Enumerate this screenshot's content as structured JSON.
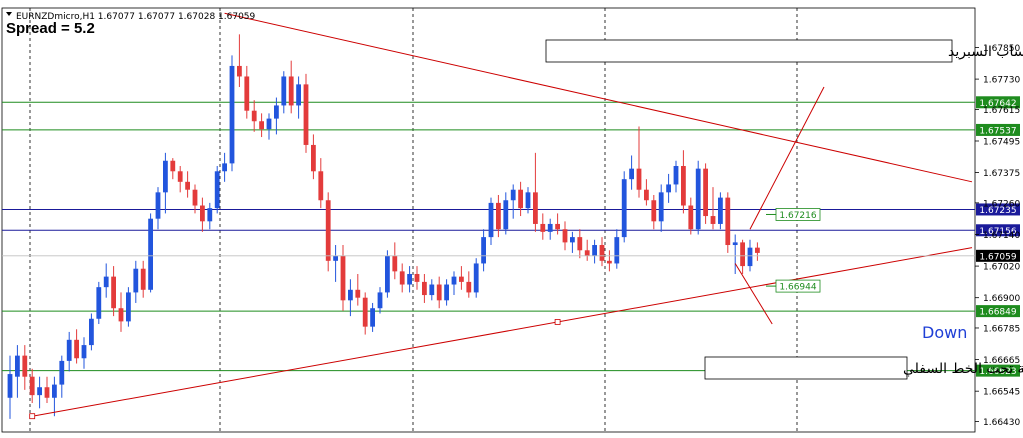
{
  "window": {
    "symbol_info": "EURNZDmicro,H1  1.67077 1.67077 1.67028 1.67059",
    "spread_text": "Spread = 5.2"
  },
  "annotations": {
    "top_note": "ادخل بيع لما يرجع السعر لخط السفلي مع عمل حساب السبريد",
    "bottom_note": "اغلقت شمعة تحت الخط السفلي",
    "direction": "Down"
  },
  "colors": {
    "bull": "#2255dd",
    "bear": "#e33b3b",
    "trendline": "#cc0000",
    "support_resistance": "#1e8c1e",
    "blue_level": "#1a1a9a",
    "background": "#ffffff"
  },
  "chart_data": {
    "type": "candlestick",
    "symbol": "EURNZDmicro",
    "timeframe": "H1",
    "ylim": [
      1.6639,
      1.68
    ],
    "y_ticks": [
      1.6785,
      1.6773,
      1.67615,
      1.67495,
      1.67375,
      1.6726,
      1.6714,
      1.6702,
      1.669,
      1.66785,
      1.66665,
      1.66545,
      1.6643
    ],
    "candles": [
      {
        "o": 1.6652,
        "h": 1.6668,
        "l": 1.6644,
        "c": 1.6661
      },
      {
        "o": 1.666,
        "h": 1.6672,
        "l": 1.6652,
        "c": 1.6668
      },
      {
        "o": 1.6668,
        "h": 1.6672,
        "l": 1.6655,
        "c": 1.666
      },
      {
        "o": 1.666,
        "h": 1.6663,
        "l": 1.665,
        "c": 1.6653
      },
      {
        "o": 1.6653,
        "h": 1.666,
        "l": 1.6648,
        "c": 1.6656
      },
      {
        "o": 1.6656,
        "h": 1.666,
        "l": 1.665,
        "c": 1.6652
      },
      {
        "o": 1.6652,
        "h": 1.666,
        "l": 1.6645,
        "c": 1.6657
      },
      {
        "o": 1.6657,
        "h": 1.6668,
        "l": 1.6652,
        "c": 1.6666
      },
      {
        "o": 1.6666,
        "h": 1.6677,
        "l": 1.6662,
        "c": 1.6674
      },
      {
        "o": 1.6674,
        "h": 1.6678,
        "l": 1.6665,
        "c": 1.6667
      },
      {
        "o": 1.6667,
        "h": 1.6675,
        "l": 1.6663,
        "c": 1.6672
      },
      {
        "o": 1.6672,
        "h": 1.6684,
        "l": 1.667,
        "c": 1.6682
      },
      {
        "o": 1.6682,
        "h": 1.6696,
        "l": 1.668,
        "c": 1.6694
      },
      {
        "o": 1.6694,
        "h": 1.6703,
        "l": 1.669,
        "c": 1.6698
      },
      {
        "o": 1.6698,
        "h": 1.6702,
        "l": 1.6683,
        "c": 1.6686
      },
      {
        "o": 1.6686,
        "h": 1.6692,
        "l": 1.6677,
        "c": 1.6681
      },
      {
        "o": 1.6681,
        "h": 1.6694,
        "l": 1.6679,
        "c": 1.6692
      },
      {
        "o": 1.6692,
        "h": 1.6704,
        "l": 1.6688,
        "c": 1.6701
      },
      {
        "o": 1.6701,
        "h": 1.6704,
        "l": 1.669,
        "c": 1.6693
      },
      {
        "o": 1.6693,
        "h": 1.6722,
        "l": 1.6692,
        "c": 1.672
      },
      {
        "o": 1.672,
        "h": 1.6732,
        "l": 1.6716,
        "c": 1.673
      },
      {
        "o": 1.673,
        "h": 1.6745,
        "l": 1.6722,
        "c": 1.6742
      },
      {
        "o": 1.6742,
        "h": 1.6743,
        "l": 1.6735,
        "c": 1.6738
      },
      {
        "o": 1.6738,
        "h": 1.674,
        "l": 1.673,
        "c": 1.6734
      },
      {
        "o": 1.6734,
        "h": 1.6738,
        "l": 1.6728,
        "c": 1.6731
      },
      {
        "o": 1.6731,
        "h": 1.6733,
        "l": 1.6722,
        "c": 1.6725
      },
      {
        "o": 1.6725,
        "h": 1.6728,
        "l": 1.6715,
        "c": 1.6719
      },
      {
        "o": 1.6719,
        "h": 1.6726,
        "l": 1.6716,
        "c": 1.6724
      },
      {
        "o": 1.6724,
        "h": 1.674,
        "l": 1.6722,
        "c": 1.6738
      },
      {
        "o": 1.6738,
        "h": 1.6745,
        "l": 1.6734,
        "c": 1.6741
      },
      {
        "o": 1.6741,
        "h": 1.6782,
        "l": 1.6738,
        "c": 1.6778
      },
      {
        "o": 1.6778,
        "h": 1.679,
        "l": 1.677,
        "c": 1.6774
      },
      {
        "o": 1.6774,
        "h": 1.6778,
        "l": 1.6758,
        "c": 1.6761
      },
      {
        "o": 1.6761,
        "h": 1.6765,
        "l": 1.6753,
        "c": 1.6757
      },
      {
        "o": 1.6757,
        "h": 1.676,
        "l": 1.6751,
        "c": 1.6754
      },
      {
        "o": 1.6754,
        "h": 1.676,
        "l": 1.675,
        "c": 1.6758
      },
      {
        "o": 1.6758,
        "h": 1.6766,
        "l": 1.6752,
        "c": 1.6763
      },
      {
        "o": 1.6763,
        "h": 1.6776,
        "l": 1.676,
        "c": 1.6774
      },
      {
        "o": 1.6774,
        "h": 1.678,
        "l": 1.676,
        "c": 1.6763
      },
      {
        "o": 1.6763,
        "h": 1.6774,
        "l": 1.6758,
        "c": 1.6771
      },
      {
        "o": 1.6771,
        "h": 1.6775,
        "l": 1.6745,
        "c": 1.6748
      },
      {
        "o": 1.6748,
        "h": 1.6752,
        "l": 1.6735,
        "c": 1.6738
      },
      {
        "o": 1.6738,
        "h": 1.6743,
        "l": 1.6724,
        "c": 1.6727
      },
      {
        "o": 1.6727,
        "h": 1.673,
        "l": 1.67,
        "c": 1.6704
      },
      {
        "o": 1.6704,
        "h": 1.671,
        "l": 1.6696,
        "c": 1.6706
      },
      {
        "o": 1.6706,
        "h": 1.671,
        "l": 1.6685,
        "c": 1.6689
      },
      {
        "o": 1.6689,
        "h": 1.6697,
        "l": 1.6683,
        "c": 1.6693
      },
      {
        "o": 1.6693,
        "h": 1.6699,
        "l": 1.6687,
        "c": 1.669
      },
      {
        "o": 1.669,
        "h": 1.6692,
        "l": 1.6676,
        "c": 1.6679
      },
      {
        "o": 1.6679,
        "h": 1.6688,
        "l": 1.6677,
        "c": 1.6686
      },
      {
        "o": 1.6686,
        "h": 1.6694,
        "l": 1.6684,
        "c": 1.6692
      },
      {
        "o": 1.6692,
        "h": 1.6708,
        "l": 1.669,
        "c": 1.6706
      },
      {
        "o": 1.6706,
        "h": 1.6711,
        "l": 1.6697,
        "c": 1.67
      },
      {
        "o": 1.67,
        "h": 1.6703,
        "l": 1.6692,
        "c": 1.6695
      },
      {
        "o": 1.6695,
        "h": 1.6702,
        "l": 1.6692,
        "c": 1.6699
      },
      {
        "o": 1.6699,
        "h": 1.6702,
        "l": 1.6693,
        "c": 1.6696
      },
      {
        "o": 1.6696,
        "h": 1.6699,
        "l": 1.6688,
        "c": 1.6691
      },
      {
        "o": 1.6691,
        "h": 1.6697,
        "l": 1.6689,
        "c": 1.6695
      },
      {
        "o": 1.6695,
        "h": 1.6698,
        "l": 1.6686,
        "c": 1.6689
      },
      {
        "o": 1.6689,
        "h": 1.6697,
        "l": 1.6687,
        "c": 1.6695
      },
      {
        "o": 1.6695,
        "h": 1.67,
        "l": 1.6691,
        "c": 1.6698
      },
      {
        "o": 1.6698,
        "h": 1.6702,
        "l": 1.6693,
        "c": 1.6696
      },
      {
        "o": 1.6696,
        "h": 1.67,
        "l": 1.669,
        "c": 1.6692
      },
      {
        "o": 1.6692,
        "h": 1.6705,
        "l": 1.669,
        "c": 1.6703
      },
      {
        "o": 1.6703,
        "h": 1.6716,
        "l": 1.67,
        "c": 1.6713
      },
      {
        "o": 1.6713,
        "h": 1.6728,
        "l": 1.671,
        "c": 1.6726
      },
      {
        "o": 1.6726,
        "h": 1.6729,
        "l": 1.6713,
        "c": 1.6716
      },
      {
        "o": 1.6716,
        "h": 1.673,
        "l": 1.6714,
        "c": 1.6727
      },
      {
        "o": 1.6727,
        "h": 1.6733,
        "l": 1.672,
        "c": 1.6731
      },
      {
        "o": 1.6731,
        "h": 1.6734,
        "l": 1.6721,
        "c": 1.6724
      },
      {
        "o": 1.6724,
        "h": 1.6732,
        "l": 1.6722,
        "c": 1.673
      },
      {
        "o": 1.673,
        "h": 1.6745,
        "l": 1.6715,
        "c": 1.6718
      },
      {
        "o": 1.6718,
        "h": 1.6722,
        "l": 1.6712,
        "c": 1.6715
      },
      {
        "o": 1.6715,
        "h": 1.672,
        "l": 1.6712,
        "c": 1.6718
      },
      {
        "o": 1.6718,
        "h": 1.6722,
        "l": 1.6714,
        "c": 1.6716
      },
      {
        "o": 1.6716,
        "h": 1.6719,
        "l": 1.6708,
        "c": 1.6711
      },
      {
        "o": 1.6711,
        "h": 1.6715,
        "l": 1.6707,
        "c": 1.6713
      },
      {
        "o": 1.6713,
        "h": 1.6716,
        "l": 1.6705,
        "c": 1.6708
      },
      {
        "o": 1.6708,
        "h": 1.6712,
        "l": 1.6704,
        "c": 1.6706
      },
      {
        "o": 1.6706,
        "h": 1.6712,
        "l": 1.6703,
        "c": 1.671
      },
      {
        "o": 1.671,
        "h": 1.6713,
        "l": 1.6702,
        "c": 1.6704
      },
      {
        "o": 1.6704,
        "h": 1.6708,
        "l": 1.67,
        "c": 1.6703
      },
      {
        "o": 1.6703,
        "h": 1.6716,
        "l": 1.6701,
        "c": 1.6713
      },
      {
        "o": 1.6713,
        "h": 1.6738,
        "l": 1.6711,
        "c": 1.6735
      },
      {
        "o": 1.6735,
        "h": 1.6744,
        "l": 1.6731,
        "c": 1.6739
      },
      {
        "o": 1.6739,
        "h": 1.6755,
        "l": 1.6728,
        "c": 1.6731
      },
      {
        "o": 1.6731,
        "h": 1.6735,
        "l": 1.6725,
        "c": 1.6727
      },
      {
        "o": 1.6727,
        "h": 1.6729,
        "l": 1.6716,
        "c": 1.6719
      },
      {
        "o": 1.6719,
        "h": 1.6733,
        "l": 1.6715,
        "c": 1.673
      },
      {
        "o": 1.673,
        "h": 1.6737,
        "l": 1.6726,
        "c": 1.6733
      },
      {
        "o": 1.6733,
        "h": 1.6742,
        "l": 1.673,
        "c": 1.674
      },
      {
        "o": 1.674,
        "h": 1.6746,
        "l": 1.6722,
        "c": 1.6725
      },
      {
        "o": 1.6725,
        "h": 1.6728,
        "l": 1.6714,
        "c": 1.6716
      },
      {
        "o": 1.6716,
        "h": 1.6742,
        "l": 1.6714,
        "c": 1.6739
      },
      {
        "o": 1.6739,
        "h": 1.6741,
        "l": 1.6718,
        "c": 1.6721
      },
      {
        "o": 1.6721,
        "h": 1.6732,
        "l": 1.6716,
        "c": 1.6718
      },
      {
        "o": 1.6718,
        "h": 1.673,
        "l": 1.6716,
        "c": 1.6728
      },
      {
        "o": 1.6728,
        "h": 1.673,
        "l": 1.6707,
        "c": 1.671
      },
      {
        "o": 1.671,
        "h": 1.6714,
        "l": 1.6699,
        "c": 1.6711
      },
      {
        "o": 1.6711,
        "h": 1.6712,
        "l": 1.6699,
        "c": 1.6702
      },
      {
        "o": 1.6702,
        "h": 1.6712,
        "l": 1.67,
        "c": 1.6709
      },
      {
        "o": 1.6709,
        "h": 1.6711,
        "l": 1.6704,
        "c": 1.6707
      }
    ],
    "horizontal_levels": [
      {
        "price": 1.67642,
        "label": "1.67642",
        "color": "green"
      },
      {
        "price": 1.67537,
        "label": "1.67537",
        "color": "green"
      },
      {
        "price": 1.67235,
        "label": "1.67235",
        "color": "navy"
      },
      {
        "price": 1.67156,
        "label": "1.67156",
        "color": "navy"
      },
      {
        "price": 1.66849,
        "label": "1.66849",
        "color": "green"
      },
      {
        "price": 1.66623,
        "label": "1.66623",
        "color": "green"
      }
    ],
    "current_price": {
      "price": 1.67059,
      "label": "1.67059"
    },
    "marked_prices": [
      {
        "price": 1.67216,
        "label": "1.67216"
      },
      {
        "price": 1.66944,
        "label": "1.66944"
      }
    ],
    "trendlines": [
      {
        "name": "upper",
        "from": {
          "bar": 29,
          "price": 1.6798
        },
        "to": {
          "bar": 130,
          "price": 1.6734
        }
      },
      {
        "name": "lower",
        "from": {
          "bar": 3,
          "price": 1.6645
        },
        "to": {
          "bar": 130,
          "price": 1.6709
        }
      }
    ],
    "projection_lines": [
      {
        "from": {
          "bar": 100,
          "price": 1.6716
        },
        "to": {
          "bar": 110,
          "price": 1.677
        }
      },
      {
        "from": {
          "bar": 98,
          "price": 1.6703
        },
        "to": {
          "bar": 103,
          "price": 1.668
        }
      }
    ]
  }
}
